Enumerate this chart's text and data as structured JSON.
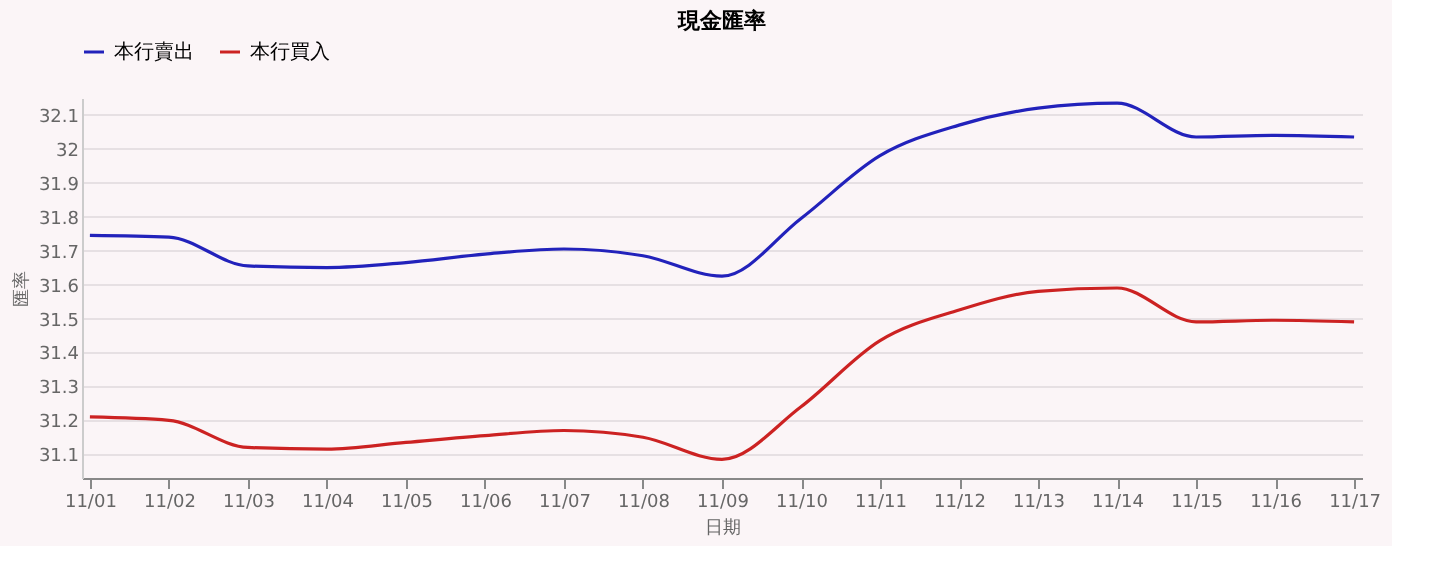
{
  "chart_data": {
    "type": "line",
    "title": "現金匯率",
    "xlabel": "日期",
    "ylabel": "匯率",
    "categories": [
      "11/01",
      "11/02",
      "11/03",
      "11/04",
      "11/05",
      "11/06",
      "11/07",
      "11/08",
      "11/09",
      "11/10",
      "11/11",
      "11/12",
      "11/13",
      "11/14",
      "11/15",
      "11/16",
      "11/17"
    ],
    "series": [
      {
        "name": "本行賣出",
        "color": "#2222bb",
        "values": [
          31.745,
          31.74,
          31.655,
          31.65,
          31.665,
          31.69,
          31.705,
          31.685,
          31.625,
          31.795,
          31.98,
          32.07,
          32.12,
          32.135,
          32.035,
          32.04,
          32.035
        ]
      },
      {
        "name": "本行買入",
        "color": "#cc2222",
        "values": [
          31.21,
          31.2,
          31.12,
          31.115,
          31.135,
          31.155,
          31.17,
          31.15,
          31.085,
          31.24,
          31.435,
          31.525,
          31.58,
          31.59,
          31.49,
          31.495,
          31.49
        ]
      }
    ],
    "ylim": [
      31.03,
      32.15
    ],
    "yticks": [
      31.1,
      31.2,
      31.3,
      31.4,
      31.5,
      31.6,
      31.7,
      31.8,
      31.9,
      32,
      32.1
    ],
    "grid": "y",
    "legend": "top",
    "marker": "none",
    "line_style": "solid"
  }
}
